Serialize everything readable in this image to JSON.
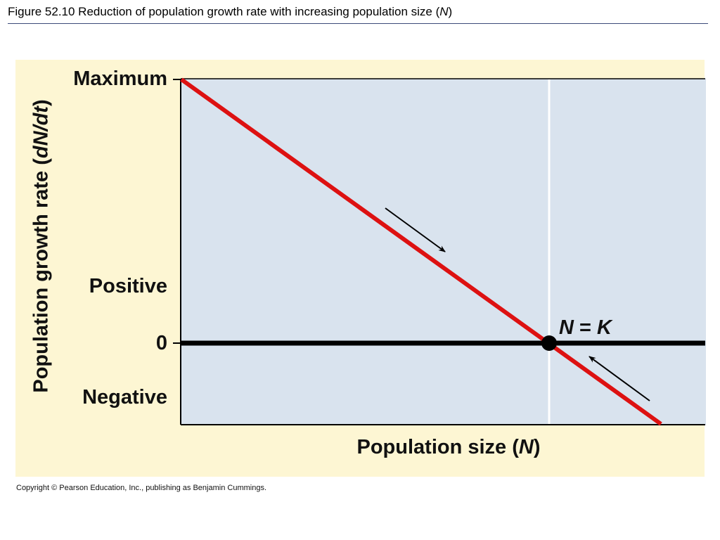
{
  "header": {
    "title_prefix": "Figure 52.10  Reduction of population growth rate with increasing population size (",
    "title_var": "N",
    "title_suffix": ")"
  },
  "axes": {
    "y_title_prefix": "Population growth rate (",
    "y_title_var": "dN/dt",
    "y_title_suffix": ")",
    "x_title_prefix": "Population size (",
    "x_title_var": "N",
    "x_title_suffix": ")",
    "y_ticks": {
      "maximum": "Maximum",
      "positive": "Positive",
      "zero": "0",
      "negative": "Negative"
    }
  },
  "annotation": {
    "left": "N",
    "equals": " = ",
    "right": "K"
  },
  "footer": {
    "copyright": "Copyright © Pearson Education, Inc., publishing as Benjamin Cummings."
  },
  "colors": {
    "panel_background": "#fdf6d3",
    "plot_background": "#d9e3ee",
    "growth_line": "#dd1111",
    "axis": "#000000",
    "carrying_capacity_line": "#ffffff"
  }
}
